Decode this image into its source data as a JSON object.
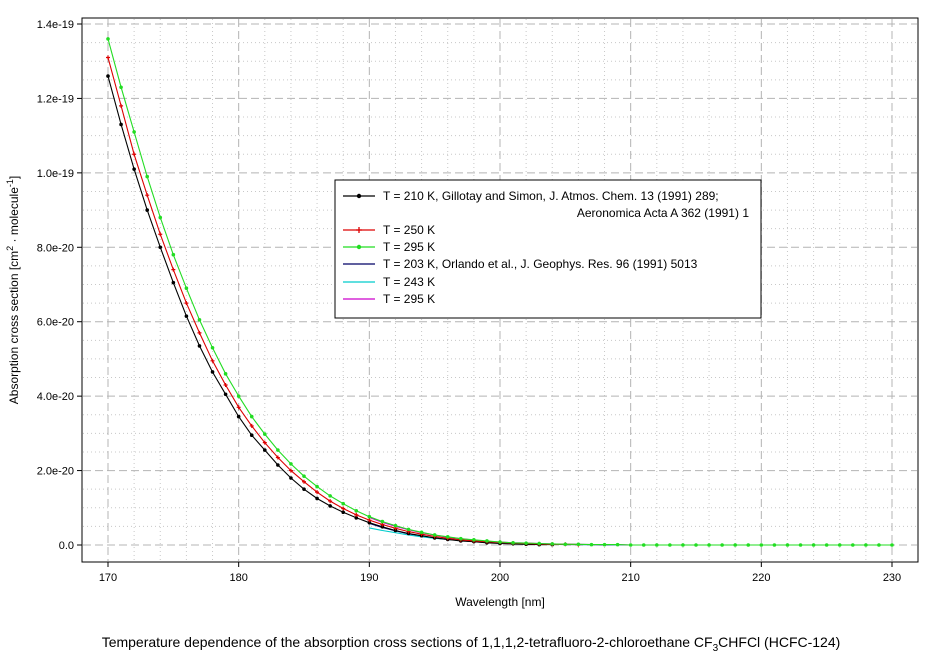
{
  "chart_data": {
    "type": "line",
    "title": "",
    "xlabel": "Wavelength [nm]",
    "xlim": [
      168,
      232
    ],
    "ylim": [
      -5e-21,
      1.4e-19
    ],
    "x_ticks": [
      170,
      180,
      190,
      200,
      210,
      220,
      230
    ],
    "x_tick_labels": [
      "170",
      "180",
      "190",
      "200",
      "210",
      "220",
      "230"
    ],
    "y_ticks": [
      0,
      2e-20,
      4e-20,
      6e-20,
      8e-20,
      1e-19,
      1.2e-19,
      1.4e-19
    ],
    "y_tick_labels": [
      "0.0",
      "2.0e-20",
      "4.0e-20",
      "6.0e-20",
      "8.0e-20",
      "1.0e-19",
      "1.2e-19",
      "1.4e-19"
    ],
    "grid": true,
    "legend_position": "center-right",
    "series": [
      {
        "name": "T = 210 K, Gillotay and Simon, J. Atmos. Chem. 13 (1991) 289;",
        "name_line2": "Aeronomica Acta A 362 (1991) 1",
        "color": "#000000",
        "marker": "dot",
        "x": [
          170,
          171,
          172,
          173,
          174,
          175,
          176,
          177,
          178,
          179,
          180,
          181,
          182,
          183,
          184,
          185,
          186,
          187,
          188,
          189,
          190,
          191,
          192,
          193,
          194,
          195,
          196,
          197,
          198,
          199,
          200,
          201,
          202,
          203,
          204
        ],
        "y": [
          1.26e-19,
          1.13e-19,
          1.01e-19,
          9e-20,
          8e-20,
          7.05e-20,
          6.15e-20,
          5.35e-20,
          4.65e-20,
          4.05e-20,
          3.45e-20,
          2.95e-20,
          2.55e-20,
          2.15e-20,
          1.8e-20,
          1.5e-20,
          1.25e-20,
          1.05e-20,
          8.8e-21,
          7.3e-21,
          6e-21,
          4.9e-21,
          3.9e-21,
          3.1e-21,
          2.5e-21,
          1.9e-21,
          1.5e-21,
          1.1e-21,
          9e-22,
          6e-22,
          4e-22,
          3e-22,
          2e-22,
          1e-22,
          1e-22
        ]
      },
      {
        "name": "T = 250 K",
        "color": "#dd0000",
        "marker": "plus",
        "x": [
          170,
          171,
          172,
          173,
          174,
          175,
          176,
          177,
          178,
          179,
          180,
          181,
          182,
          183,
          184,
          185,
          186,
          187,
          188,
          189,
          190,
          191,
          192,
          193,
          194,
          195,
          196,
          197,
          198,
          199,
          200,
          201,
          202,
          203,
          204,
          205,
          206
        ],
        "y": [
          1.31e-19,
          1.18e-19,
          1.05e-19,
          9.4e-20,
          8.35e-20,
          7.4e-20,
          6.5e-20,
          5.7e-20,
          4.95e-20,
          4.3e-20,
          3.7e-20,
          3.2e-20,
          2.75e-20,
          2.35e-20,
          2e-20,
          1.7e-20,
          1.42e-20,
          1.18e-20,
          9.8e-21,
          8.1e-21,
          6.7e-21,
          5.5e-21,
          4.5e-21,
          3.6e-21,
          2.9e-21,
          2.3e-21,
          1.8e-21,
          1.4e-21,
          1.1e-21,
          9e-22,
          7e-22,
          5e-22,
          4e-22,
          3e-22,
          2e-22,
          2e-22,
          1e-22
        ]
      },
      {
        "name": "T = 295 K",
        "color": "#22dd22",
        "marker": "dot",
        "x": [
          170,
          171,
          172,
          173,
          174,
          175,
          176,
          177,
          178,
          179,
          180,
          181,
          182,
          183,
          184,
          185,
          186,
          187,
          188,
          189,
          190,
          191,
          192,
          193,
          194,
          195,
          196,
          197,
          198,
          199,
          200,
          201,
          202,
          203,
          204,
          205,
          206,
          207,
          208,
          209,
          210,
          211,
          212,
          213,
          214,
          215,
          216,
          217,
          218,
          219,
          220,
          221,
          222,
          223,
          224,
          225,
          226,
          227,
          228,
          229,
          230
        ],
        "y": [
          1.36e-19,
          1.23e-19,
          1.11e-19,
          9.9e-20,
          8.8e-20,
          7.8e-20,
          6.9e-20,
          6.05e-20,
          5.3e-20,
          4.6e-20,
          4e-20,
          3.45e-20,
          2.98e-20,
          2.55e-20,
          2.18e-20,
          1.85e-20,
          1.57e-20,
          1.32e-20,
          1.11e-20,
          9.2e-21,
          7.6e-21,
          6.3e-21,
          5.2e-21,
          4.2e-21,
          3.4e-21,
          2.7e-21,
          2.2e-21,
          1.7e-21,
          1.4e-21,
          1.1e-21,
          8e-22,
          6e-22,
          5e-22,
          4e-22,
          3e-22,
          2e-22,
          2e-22,
          1e-22,
          1e-22,
          1e-22,
          0,
          0,
          0,
          0,
          0,
          0,
          0,
          0,
          0,
          0,
          0,
          0,
          0,
          0,
          0,
          0,
          0,
          0,
          0,
          0,
          0
        ]
      },
      {
        "name": "T = 203 K, Orlando et al., J. Geophys. Res. 96 (1991) 5013",
        "color": "#000066",
        "marker": "none",
        "x": [
          190,
          191,
          192,
          193,
          194,
          195,
          196,
          197,
          198,
          199,
          200,
          201,
          202,
          203,
          204,
          205,
          206,
          207,
          208,
          209,
          210,
          211,
          212
        ],
        "y": [
          5.8e-21,
          4.7e-21,
          3.8e-21,
          3e-21,
          2.4e-21,
          1.9e-21,
          1.5e-21,
          1.2e-21,
          9e-22,
          7e-22,
          5e-22,
          4e-22,
          3e-22,
          2e-22,
          2e-22,
          1e-22,
          1e-22,
          1e-22,
          0,
          0,
          0,
          0,
          0
        ]
      },
      {
        "name": "T = 243 K",
        "color": "#00cccc",
        "marker": "none",
        "x": [
          190,
          191,
          192,
          193,
          194,
          195,
          196,
          197,
          198,
          199,
          200,
          201,
          202,
          203,
          204,
          205,
          206,
          207,
          208,
          209,
          210,
          211,
          212
        ],
        "y": [
          4.6e-21,
          3.9e-21,
          3.3e-21,
          2.7e-21,
          2.2e-21,
          1.8e-21,
          1.5e-21,
          1.2e-21,
          1e-21,
          8e-22,
          6e-22,
          5e-22,
          4e-22,
          3e-22,
          2e-22,
          2e-22,
          1e-22,
          1e-22,
          1e-22,
          0,
          0,
          0,
          0
        ]
      },
      {
        "name": "T = 295 K",
        "color": "#cc00cc",
        "marker": "none",
        "x": [
          190,
          191,
          192,
          193,
          194,
          195,
          196,
          197,
          198,
          199,
          200,
          201,
          202,
          203,
          204,
          205,
          206,
          207,
          208,
          209,
          210,
          211,
          212,
          213,
          214,
          215,
          216,
          217,
          218,
          219,
          220,
          221,
          222,
          223,
          224,
          225,
          226,
          227,
          228,
          229,
          230
        ],
        "y": [
          7.4e-21,
          6.1e-21,
          5e-21,
          4.1e-21,
          3.3e-21,
          2.7e-21,
          2.1e-21,
          1.7e-21,
          1.3e-21,
          1e-21,
          8e-22,
          6e-22,
          5e-22,
          4e-22,
          3e-22,
          2e-22,
          2e-22,
          1e-22,
          1e-22,
          1e-22,
          0,
          0,
          0,
          0,
          0,
          0,
          0,
          0,
          0,
          0,
          0,
          0,
          0,
          0,
          0,
          0,
          0,
          0,
          0,
          0,
          0
        ]
      }
    ]
  },
  "axes": {
    "ylabel_main": "Absorption cross section [cm",
    "ylabel_sup1": "2",
    "ylabel_mid": " · molecule",
    "ylabel_sup2": "-1",
    "ylabel_end": "]"
  },
  "caption": {
    "part1": "Temperature dependence of the absorption cross sections of 1,1,1,2-tetrafluoro-2-chloroethane CF",
    "sub": "3",
    "part2": "CHFCl (HCFC-124)"
  }
}
